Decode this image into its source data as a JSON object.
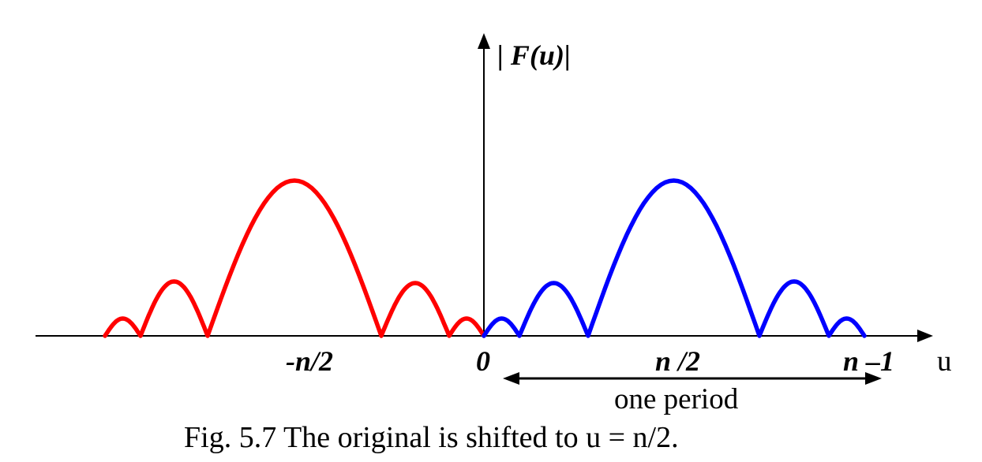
{
  "figure": {
    "y_axis_label": "| F(u)|",
    "x_axis_label": "u",
    "tick_labels": {
      "neg_half": "-n/2",
      "zero": "0",
      "half": "n /2",
      "n_minus_1": "n –1"
    },
    "period_label": "one period",
    "caption": "Fig. 5.7 The original is shifted to u = n/2."
  },
  "colors": {
    "axis": "#000000",
    "original_spectrum": "#0000ff",
    "shifted_copy": "#ff0000"
  }
}
